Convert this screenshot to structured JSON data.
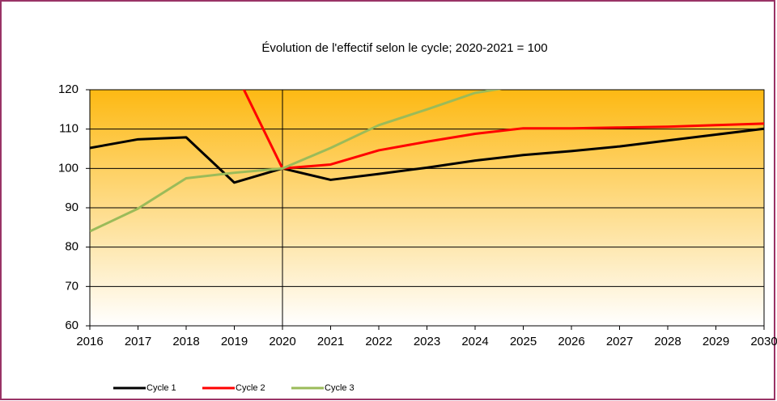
{
  "chart_data": {
    "type": "line",
    "title": "Évolution de l'effectif selon le cycle; 2020-2021 = 100",
    "x": [
      2016,
      2017,
      2018,
      2019,
      2020,
      2021,
      2022,
      2023,
      2024,
      2025,
      2026,
      2027,
      2028,
      2029,
      2030
    ],
    "series": [
      {
        "name": "Cycle 1",
        "color": "#000000",
        "values": [
          105.2,
          107.4,
          107.9,
          96.4,
          100,
          97.1,
          98.6,
          100.2,
          102,
          103.4,
          104.4,
          105.6,
          107.1,
          108.6,
          110.1
        ]
      },
      {
        "name": "Cycle 2",
        "color": "#ff0000",
        "values": [
          null,
          null,
          null,
          125,
          100,
          101,
          104.6,
          106.8,
          108.8,
          110.2,
          110.2,
          110.4,
          110.6,
          111,
          111.4
        ]
      },
      {
        "name": "Cycle 3",
        "color": "#9bbb59",
        "values": [
          84,
          89.8,
          97.5,
          98.9,
          100,
          105.2,
          111,
          115,
          119.2,
          121.2,
          null,
          null,
          null,
          null,
          null
        ]
      }
    ],
    "xlim": [
      2016,
      2030
    ],
    "xticks": [
      2016,
      2017,
      2018,
      2019,
      2020,
      2021,
      2022,
      2023,
      2024,
      2025,
      2026,
      2027,
      2028,
      2029,
      2030
    ],
    "ylim": [
      60,
      120
    ],
    "yticks": [
      60,
      70,
      80,
      90,
      100,
      110,
      120
    ],
    "grid": true,
    "legend": "bottom"
  }
}
